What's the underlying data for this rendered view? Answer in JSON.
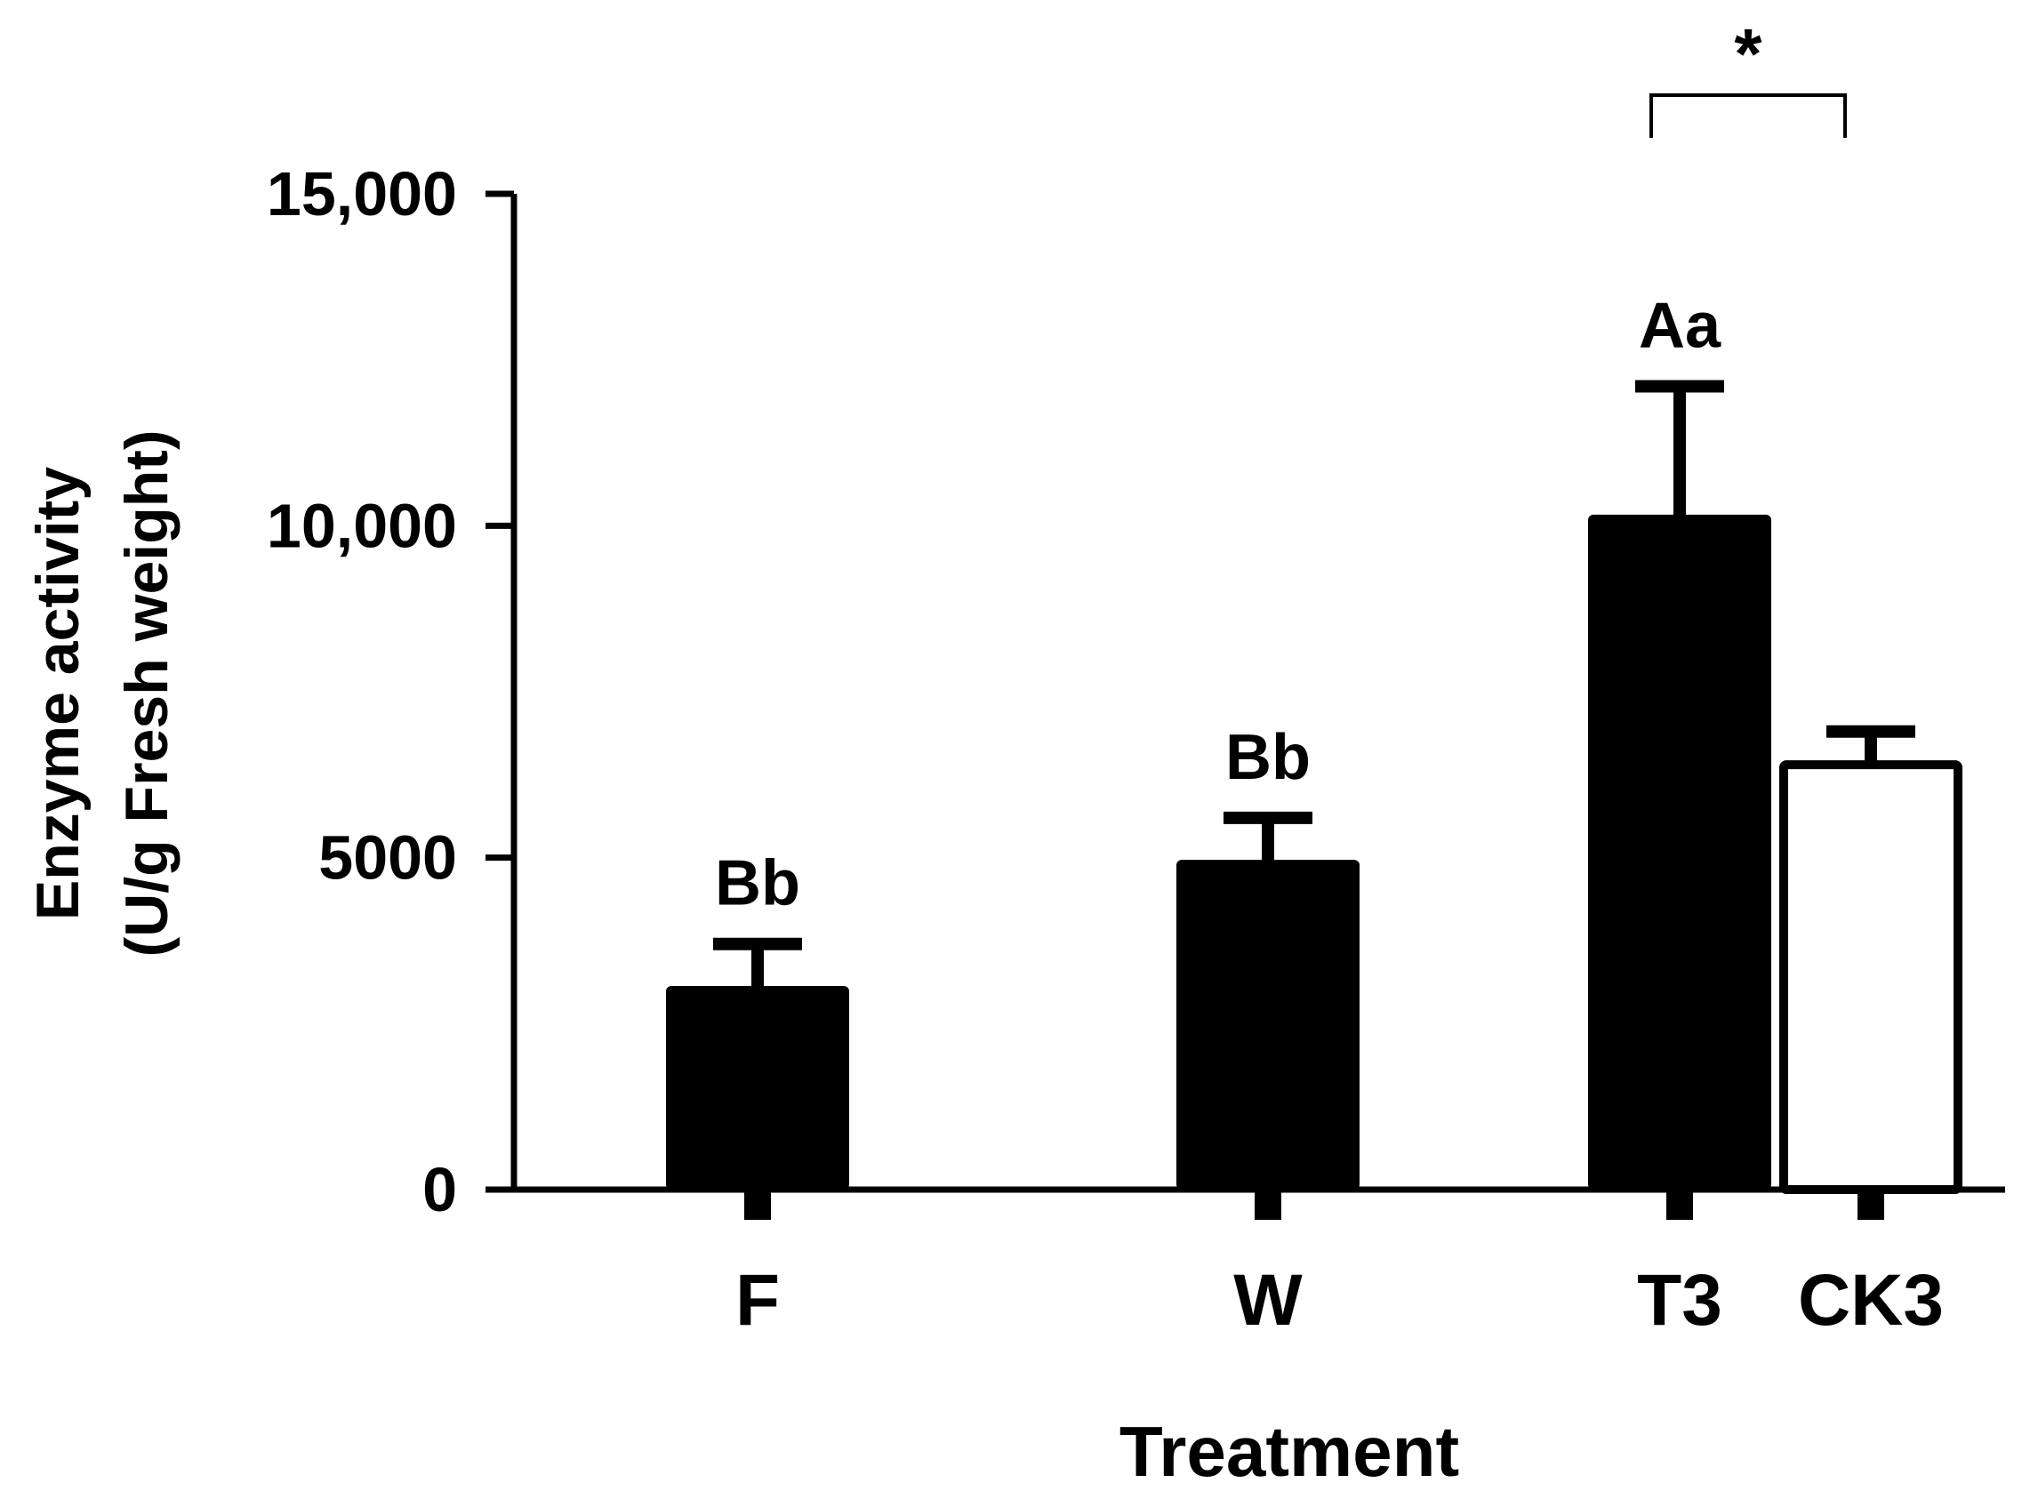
{
  "chart_data": {
    "type": "bar",
    "title": "",
    "xlabel": "Treatment",
    "ylabel_lines": [
      "Enzyme activity",
      "(U/g Fresh weight)"
    ],
    "ylim": [
      0,
      15000
    ],
    "yticks": [
      {
        "value": 0,
        "label": "0"
      },
      {
        "value": 5000,
        "label": "5000"
      },
      {
        "value": 10000,
        "label": "10,000"
      },
      {
        "value": 15000,
        "label": "15,000"
      }
    ],
    "categories": [
      "F",
      "W",
      "T3",
      "CK3"
    ],
    "values": [
      3000,
      4900,
      10100,
      6400
    ],
    "errors": [
      700,
      700,
      2000,
      500
    ],
    "fills": [
      "#000000",
      "#000000",
      "#000000",
      "#ffffff"
    ],
    "annotations": [
      "Bb",
      "Bb",
      "Aa",
      ""
    ],
    "significance": {
      "from": "T3",
      "to": "CK3",
      "label": "*"
    },
    "grid": false,
    "legend": "none"
  }
}
